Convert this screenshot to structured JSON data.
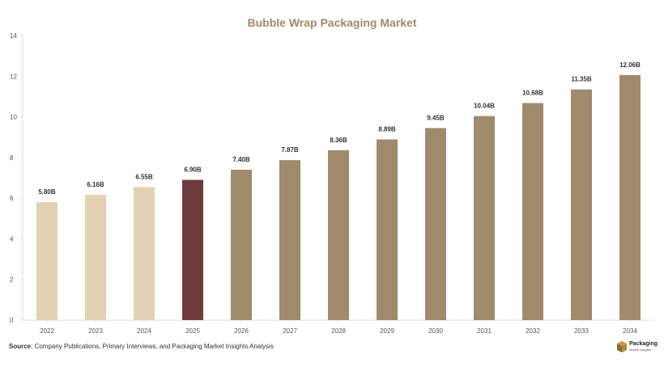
{
  "chart_data": {
    "type": "bar",
    "title": "Bubble Wrap Packaging Market",
    "xlabel": "",
    "ylabel": "",
    "categories": [
      "2022",
      "2023",
      "2024",
      "2025",
      "2026",
      "2027",
      "2028",
      "2029",
      "2030",
      "2031",
      "2032",
      "2033",
      "2034"
    ],
    "values": [
      5.8,
      6.16,
      6.55,
      6.9,
      7.4,
      7.87,
      8.36,
      8.89,
      9.45,
      10.04,
      10.68,
      11.35,
      12.06
    ],
    "data_labels": [
      "5.80B",
      "6.16B",
      "6.55B",
      "6.90B",
      "7.40B",
      "7.87B",
      "8.36B",
      "8.89B",
      "9.45B",
      "10.04B",
      "10.68B",
      "11.35B",
      "12.06B"
    ],
    "bar_colors": [
      "#e3d1b3",
      "#e3d1b3",
      "#e3d1b3",
      "#6e3b3b",
      "#a08a6c",
      "#a08a6c",
      "#a08a6c",
      "#a08a6c",
      "#a08a6c",
      "#a08a6c",
      "#a08a6c",
      "#a08a6c",
      "#a08a6c"
    ],
    "ylim": [
      0,
      14
    ],
    "yticks": [
      0,
      2,
      4,
      6,
      8,
      10,
      12,
      14
    ],
    "grid": false,
    "legend": "none"
  },
  "footer": {
    "source_label": "Source",
    "source_text": ": Company Publications, Primary Interviews, and Packaging Market Insights Analysis",
    "logo_main": "Packaging",
    "logo_sub": "Market Insights"
  },
  "colors": {
    "title": "#a08a6c",
    "axis": "#dddddd",
    "tick_text": "#555555",
    "label_text": "#333333"
  }
}
